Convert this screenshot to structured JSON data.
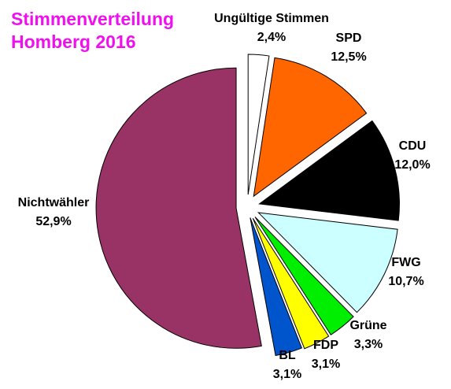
{
  "chart_data": {
    "type": "pie",
    "title_lines": [
      "Stimmenverteilung",
      "Homberg 2016"
    ],
    "title_color": "#ee11ee",
    "slices": [
      {
        "label": "Ungültige Stimmen",
        "value_text": "2,4%",
        "value": 2.4,
        "color": "#ffffff"
      },
      {
        "label": "SPD",
        "value_text": "12,5%",
        "value": 12.5,
        "color": "#ff6600"
      },
      {
        "label": "CDU",
        "value_text": "12,0%",
        "value": 12.0,
        "color": "#000000"
      },
      {
        "label": "FWG",
        "value_text": "10,7%",
        "value": 10.7,
        "color": "#ccffff"
      },
      {
        "label": "Grüne",
        "value_text": "3,3%",
        "value": 3.3,
        "color": "#00ee00"
      },
      {
        "label": "FDP",
        "value_text": "3,1%",
        "value": 3.1,
        "color": "#ffff00"
      },
      {
        "label": "BL",
        "value_text": "3,1%",
        "value": 3.1,
        "color": "#0055cc"
      },
      {
        "label": "Nichtwähler",
        "value_text": "52,9%",
        "value": 52.9,
        "color": "#993366"
      }
    ],
    "start_angle_deg": 0,
    "direction": "clockwise",
    "exploded": "all"
  }
}
